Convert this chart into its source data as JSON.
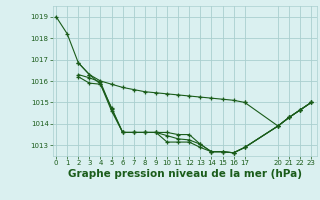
{
  "background_color": "#daf0f0",
  "grid_color": "#aacfcf",
  "line_color": "#1a5c1a",
  "marker_color": "#1a5c1a",
  "title": "Graphe pression niveau de la mer (hPa)",
  "title_fontsize": 7.5,
  "ylim": [
    1012.5,
    1019.5
  ],
  "yticks": [
    1013,
    1014,
    1015,
    1016,
    1017,
    1018,
    1019
  ],
  "xticks": [
    0,
    1,
    2,
    3,
    4,
    5,
    6,
    7,
    8,
    9,
    10,
    11,
    12,
    13,
    14,
    15,
    16,
    17,
    20,
    21,
    22,
    23
  ],
  "xlim": [
    -0.3,
    23.5
  ],
  "series": [
    {
      "x": [
        0,
        1,
        2,
        3,
        4,
        5,
        6,
        7,
        8,
        9,
        10,
        11,
        12,
        13,
        14,
        15,
        16,
        17
      ],
      "y": [
        1019.0,
        1018.2,
        1016.85,
        1016.3,
        1016.0,
        1015.85,
        1015.7,
        1015.6,
        1015.5,
        1015.45,
        1015.4,
        1015.35,
        1015.3,
        1015.25,
        1015.2,
        1015.15,
        1015.1,
        1015.0
      ]
    },
    {
      "x": [
        17,
        20,
        21,
        22,
        23
      ],
      "y": [
        1015.0,
        1013.9,
        1014.3,
        1014.65,
        1015.0
      ]
    },
    {
      "x": [
        2,
        3,
        4,
        5,
        6,
        7,
        8,
        9,
        10,
        11,
        12,
        13,
        14,
        15,
        16,
        17,
        20,
        21,
        22,
        23
      ],
      "y": [
        1016.85,
        1016.3,
        1015.85,
        1014.6,
        1013.6,
        1013.6,
        1013.6,
        1013.6,
        1013.15,
        1013.15,
        1013.15,
        1012.9,
        1012.7,
        1012.7,
        1012.65,
        1012.9,
        1013.9,
        1014.3,
        1014.65,
        1015.0
      ]
    },
    {
      "x": [
        2,
        3,
        4,
        5,
        6,
        7,
        8,
        9,
        10,
        11,
        12,
        13,
        14,
        15,
        16,
        17,
        20,
        21,
        22,
        23
      ],
      "y": [
        1016.3,
        1016.15,
        1015.95,
        1014.7,
        1013.6,
        1013.6,
        1013.6,
        1013.6,
        1013.45,
        1013.3,
        1013.25,
        1013.05,
        1012.7,
        1012.7,
        1012.65,
        1012.9,
        1013.9,
        1014.3,
        1014.65,
        1015.0
      ]
    },
    {
      "x": [
        2,
        3,
        4,
        5,
        6,
        7,
        8,
        9,
        10,
        11,
        12,
        13,
        14,
        15,
        16,
        17,
        20,
        21,
        22,
        23
      ],
      "y": [
        1016.2,
        1015.9,
        1015.85,
        1014.75,
        1013.6,
        1013.6,
        1013.6,
        1013.6,
        1013.6,
        1013.5,
        1013.5,
        1013.05,
        1012.7,
        1012.7,
        1012.65,
        1012.9,
        1013.9,
        1014.3,
        1014.65,
        1015.0
      ]
    }
  ]
}
